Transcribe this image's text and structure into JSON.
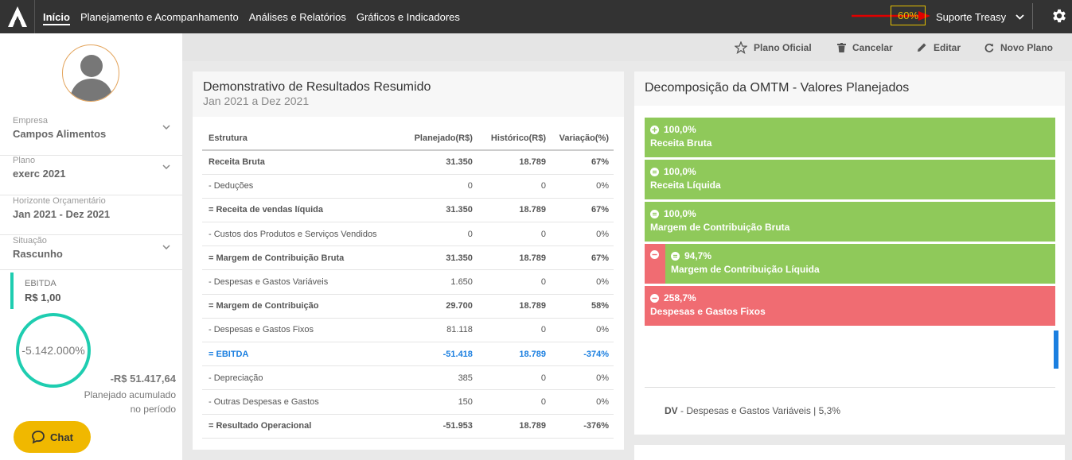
{
  "nav": {
    "items": [
      "Início",
      "Planejamento e Acompanhamento",
      "Análises e Relatórios",
      "Gráficos e Indicadores"
    ],
    "active": 0,
    "zoom": "60%",
    "user": "Suporte Treasy"
  },
  "sidebar": {
    "empresa_label": "Empresa",
    "empresa_value": "Campos Alimentos",
    "plano_label": "Plano",
    "plano_value": "exerc 2021",
    "horizonte_label": "Horizonte Orçamentário",
    "horizonte_value": "Jan 2021 - Dez 2021",
    "situacao_label": "Situação",
    "situacao_value": "Rascunho",
    "ebitda_label": "EBITDA",
    "ebitda_value": "R$ 1,00",
    "ring_value": "-5.142.000%",
    "accum_value": "-R$ 51.417,64",
    "accum_label_1": "Planejado acumulado",
    "accum_label_2": "no período",
    "chat_label": "Chat"
  },
  "toolbar": {
    "plano_oficial": "Plano Oficial",
    "cancelar": "Cancelar",
    "editar": "Editar",
    "novo_plano": "Novo Plano"
  },
  "dre": {
    "title": "Demonstrativo de Resultados Resumido",
    "subtitle": "Jan 2021 a Dez 2021",
    "headers": [
      "Estrutura",
      "Planejado(R$)",
      "Histórico(R$)",
      "Variação(%)"
    ],
    "rows": [
      [
        "Receita Bruta",
        "31.350",
        "18.789",
        "67%"
      ],
      [
        "- Deduções",
        "0",
        "0",
        "0%"
      ],
      [
        "= Receita de vendas líquida",
        "31.350",
        "18.789",
        "67%"
      ],
      [
        "- Custos dos Produtos e Serviços Vendidos",
        "0",
        "0",
        "0%"
      ],
      [
        "= Margem de Contribuição Bruta",
        "31.350",
        "18.789",
        "67%"
      ],
      [
        "- Despesas e Gastos Variáveis",
        "1.650",
        "0",
        "0%"
      ],
      [
        "= Margem de Contribuição",
        "29.700",
        "18.789",
        "58%"
      ],
      [
        "- Despesas e Gastos Fixos",
        "81.118",
        "0",
        "0%"
      ],
      [
        "= EBITDA",
        "-51.418",
        "18.789",
        "-374%"
      ],
      [
        "- Depreciação",
        "385",
        "0",
        "0%"
      ],
      [
        "- Outras Despesas e Gastos",
        "150",
        "0",
        "0%"
      ],
      [
        "= Resultado Operacional",
        "-51.953",
        "18.789",
        "-376%"
      ]
    ]
  },
  "omtm": {
    "title": "Decomposição da OMTM - Valores Planejados",
    "boxes": [
      {
        "pct": "100,0%",
        "name": "Receita Bruta"
      },
      {
        "pct": "100,0%",
        "name": "Receita Líquida"
      },
      {
        "pct": "100,0%",
        "name": "Margem de Contribuição Bruta"
      },
      {
        "pct": "94,7%",
        "name": "Margem de Contribuição Líquida"
      },
      {
        "pct": "258,7%",
        "name": "Despesas e Gastos Fixos"
      }
    ],
    "footer_code": "DV",
    "footer_text": " - Despesas e Gastos Variáveis | 5,3%",
    "colors": {
      "green": "#8fc95a",
      "red": "#f06c72",
      "blue": "#1b7fe0"
    }
  }
}
